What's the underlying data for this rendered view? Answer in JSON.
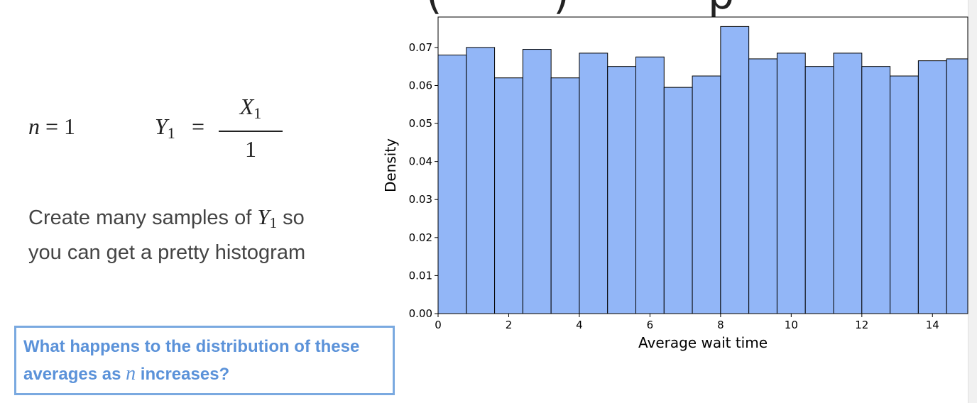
{
  "slide": {
    "title_fragment": "(        )          p",
    "formula": {
      "n": "n",
      "n_value": "1",
      "y_var": "Y",
      "y_sub": "1",
      "x_var": "X",
      "x_sub": "1",
      "denominator": "1"
    },
    "description": {
      "line1_before": "Create many samples of ",
      "var": "Y",
      "var_sub": "1",
      "line1_after": " so",
      "line2": "you can get a pretty histogram"
    },
    "callout": {
      "before": "What happens to the distribution of these averages as ",
      "var": "n",
      "after": " increases?"
    }
  },
  "chart_data": {
    "type": "bar",
    "title": "",
    "xlabel": "Average wait time",
    "ylabel": "Density",
    "xlim": [
      0,
      15
    ],
    "ylim": [
      0,
      0.078
    ],
    "xticks": [
      0,
      2,
      4,
      6,
      8,
      10,
      12,
      14
    ],
    "yticks": [
      0.0,
      0.01,
      0.02,
      0.03,
      0.04,
      0.05,
      0.06,
      0.07
    ],
    "bin_edges": [
      0,
      0.8,
      1.6,
      2.4,
      3.2,
      4.0,
      4.8,
      5.6,
      6.4,
      7.2,
      8.0,
      8.8,
      9.6,
      10.4,
      11.2,
      12.0,
      12.8,
      13.6,
      14.4,
      15.2
    ],
    "values": [
      0.068,
      0.07,
      0.062,
      0.0695,
      0.062,
      0.0685,
      0.065,
      0.0675,
      0.0595,
      0.0625,
      0.0755,
      0.067,
      0.0685,
      0.065,
      0.0685,
      0.065,
      0.0625,
      0.0665,
      0.067
    ],
    "bar_color": "#92b6f7",
    "edge_color": "#000000",
    "grid": false
  }
}
